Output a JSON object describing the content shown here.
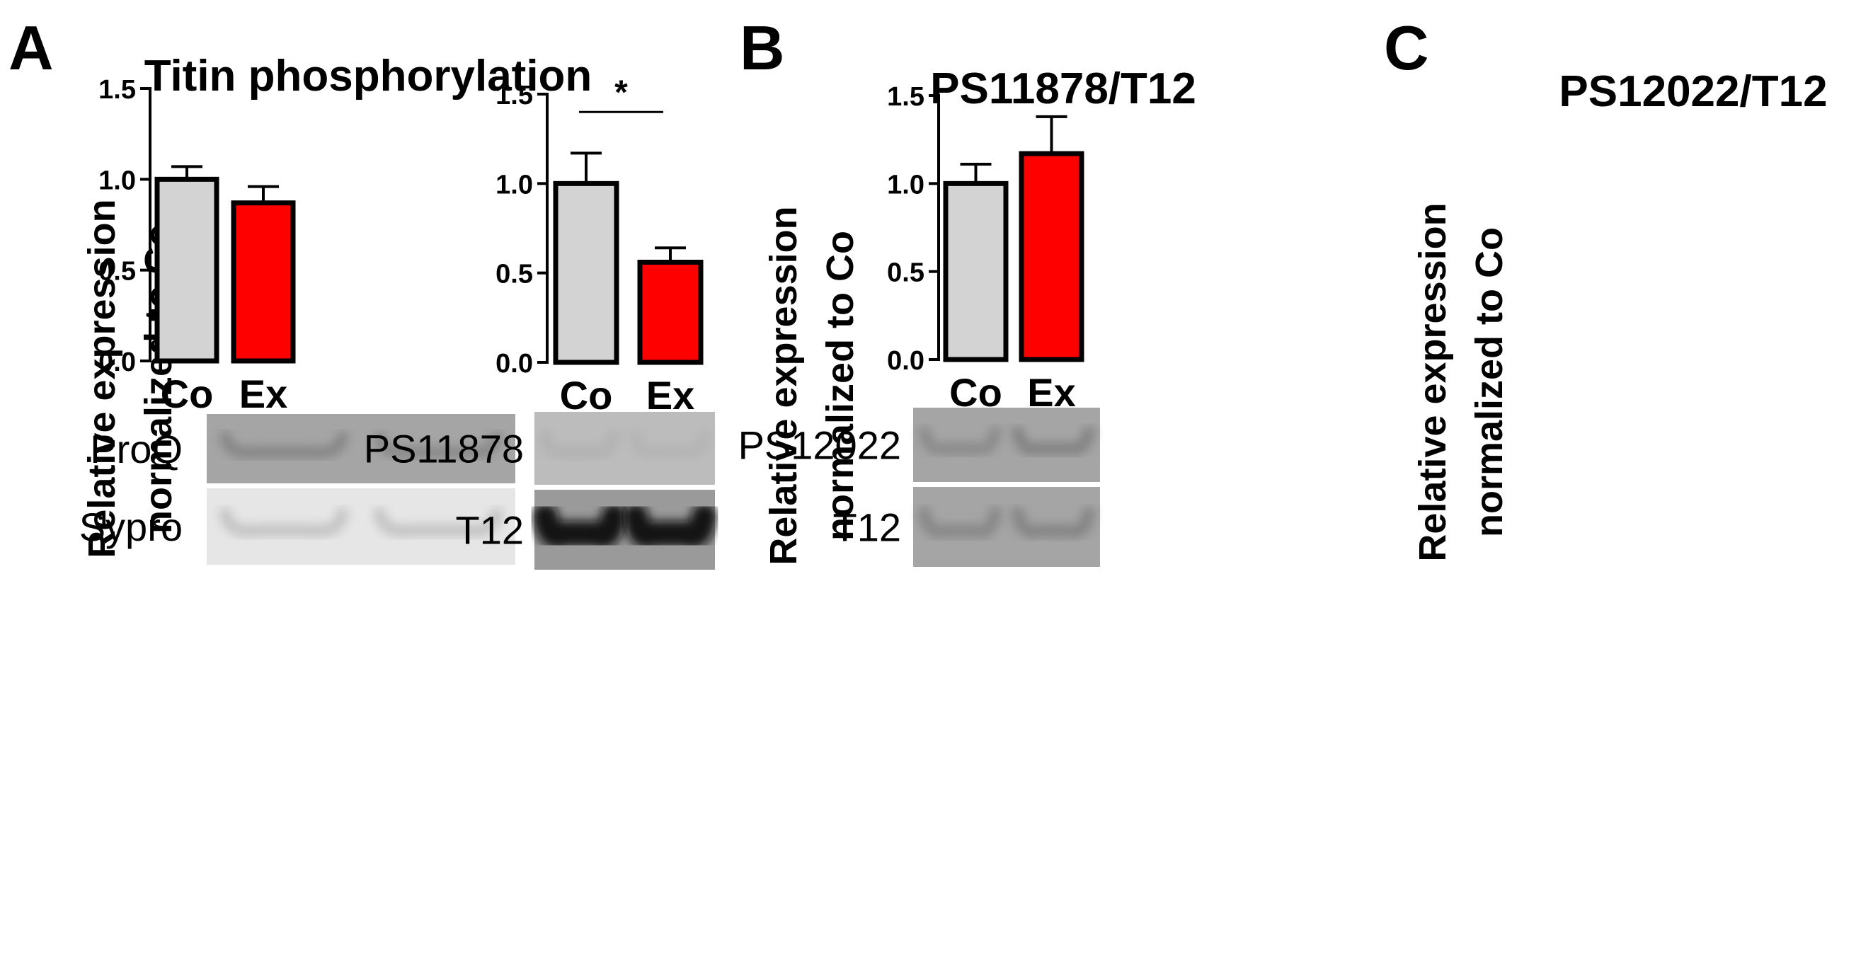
{
  "colors": {
    "control_bar": "#d3d3d3",
    "exercise_bar": "#ff0000",
    "axis": "#000000"
  },
  "chart_data": [
    {
      "panel_letter": "A",
      "type": "bar",
      "title": "Titin phosphorylation",
      "ylabel_line1": "Relative expression",
      "ylabel_line2": "normalized to Co",
      "categories": [
        "Co",
        "Ex"
      ],
      "values": [
        1.0,
        0.87
      ],
      "errors": [
        0.07,
        0.09
      ],
      "bar_colors": [
        "#d3d3d3",
        "#ff0000"
      ],
      "ylim": [
        0,
        1.5
      ],
      "yticks": [
        0.0,
        0.5,
        1.0,
        1.5
      ],
      "ytick_labels": [
        "0.0",
        "0.5",
        "1.0",
        "1.5"
      ],
      "significance": null,
      "blots": [
        {
          "label": "ProQ",
          "tone": "medium",
          "intensity": [
            0.55,
            0.5
          ]
        },
        {
          "label": "Sypro",
          "tone": "light",
          "intensity": [
            0.45,
            0.45
          ]
        }
      ]
    },
    {
      "panel_letter": "B",
      "type": "bar",
      "title": "PS11878/T12",
      "ylabel_line1": "Relative expression",
      "ylabel_line2": "normalized to Co",
      "categories": [
        "Co",
        "Ex"
      ],
      "values": [
        1.0,
        0.56
      ],
      "errors": [
        0.17,
        0.08
      ],
      "bar_colors": [
        "#d3d3d3",
        "#ff0000"
      ],
      "ylim": [
        0,
        1.5
      ],
      "yticks": [
        0.0,
        0.5,
        1.0,
        1.5
      ],
      "ytick_labels": [
        "0.0",
        "0.5",
        "1.0",
        "1.5"
      ],
      "significance": {
        "label": "*",
        "y": 1.4
      },
      "blots": [
        {
          "label": "PS11878",
          "tone": "faint",
          "intensity": [
            0.2,
            0.12
          ]
        },
        {
          "label": "T12",
          "tone": "dark",
          "intensity": [
            0.95,
            0.95
          ]
        }
      ]
    },
    {
      "panel_letter": "C",
      "type": "bar",
      "title": "PS12022/T12",
      "ylabel_line1": "Relative expression",
      "ylabel_line2": "normalized to Co",
      "categories": [
        "Co",
        "Ex"
      ],
      "values": [
        1.0,
        1.17
      ],
      "errors": [
        0.11,
        0.21
      ],
      "bar_colors": [
        "#d3d3d3",
        "#ff0000"
      ],
      "ylim": [
        0,
        1.5
      ],
      "yticks": [
        0.0,
        0.5,
        1.0,
        1.5
      ],
      "ytick_labels": [
        "0.0",
        "0.5",
        "1.0",
        "1.5"
      ],
      "significance": null,
      "blots": [
        {
          "label": "PS12022",
          "tone": "medium",
          "intensity": [
            0.45,
            0.6
          ]
        },
        {
          "label": "T12",
          "tone": "medium",
          "intensity": [
            0.5,
            0.55
          ]
        }
      ]
    }
  ]
}
